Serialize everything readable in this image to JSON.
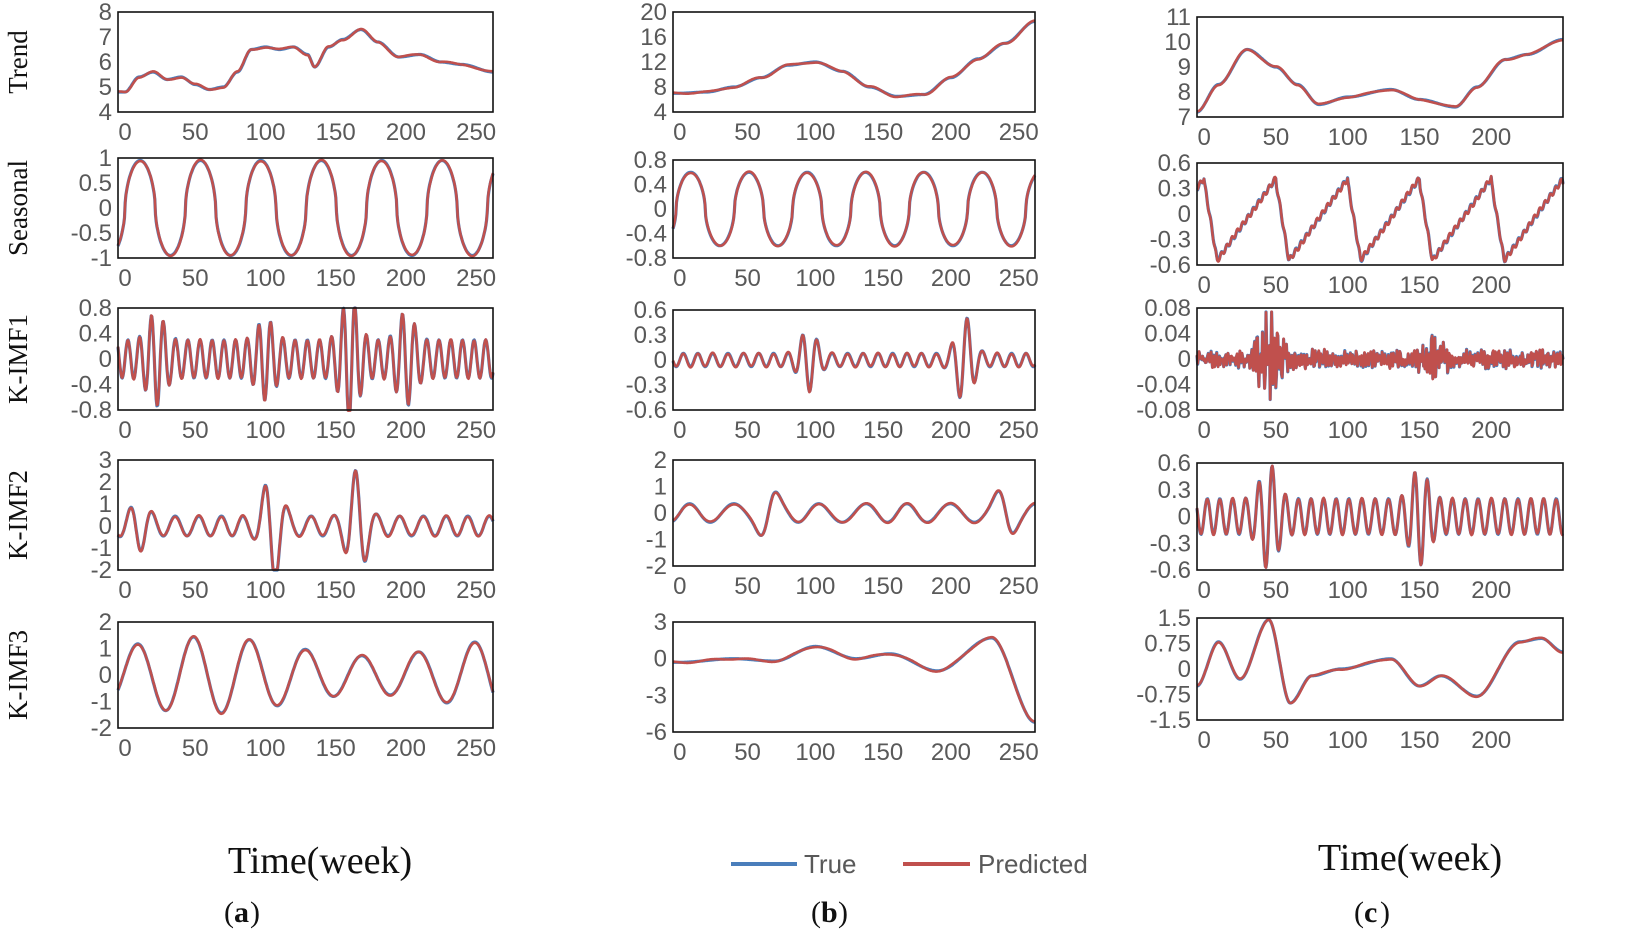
{
  "chart_data": {
    "type": "line",
    "series_names": [
      "True",
      "Predicted"
    ],
    "colors": {
      "true": "#4a7ebb",
      "predicted": "#c0504d"
    },
    "legend": {
      "position": "bottom-center",
      "items": [
        "True",
        "Predicted"
      ]
    },
    "x_titles": [
      "Time(week)",
      "Time(week)"
    ],
    "panels": [
      {
        "id": "a",
        "letter": "a",
        "rows": [
          {
            "ylabel": "Trend",
            "xmin": -5,
            "xmax": 262,
            "xticks": [
              0,
              50,
              100,
              150,
              200,
              250
            ],
            "ymin": 4,
            "ymax": 8,
            "yticks": [
              "4",
              "5",
              "6",
              "7",
              "8"
            ],
            "shape": "trend",
            "points": [
              [
                0,
                4.8
              ],
              [
                10,
                5.4
              ],
              [
                20,
                5.6
              ],
              [
                30,
                5.3
              ],
              [
                40,
                5.4
              ],
              [
                50,
                5.1
              ],
              [
                60,
                4.9
              ],
              [
                70,
                5.0
              ],
              [
                80,
                5.6
              ],
              [
                90,
                6.5
              ],
              [
                100,
                6.6
              ],
              [
                110,
                6.5
              ],
              [
                120,
                6.6
              ],
              [
                130,
                6.3
              ],
              [
                135,
                5.8
              ],
              [
                145,
                6.6
              ],
              [
                155,
                6.9
              ],
              [
                168,
                7.3
              ],
              [
                180,
                6.8
              ],
              [
                195,
                6.2
              ],
              [
                210,
                6.3
              ],
              [
                225,
                6.0
              ],
              [
                240,
                5.9
              ],
              [
                262,
                5.6
              ]
            ]
          },
          {
            "ylabel": "Seasonal",
            "xmin": -5,
            "xmax": 262,
            "xticks": [
              0,
              50,
              100,
              150,
              200,
              250
            ],
            "ymin": -1,
            "ymax": 1,
            "yticks": [
              "-1",
              "-0.5",
              "0",
              "0.5",
              "1"
            ],
            "shape": "seasonal",
            "amp": 0.95,
            "period": 43,
            "phase": 0
          },
          {
            "ylabel": "K-IMF1",
            "xmin": -5,
            "xmax": 262,
            "xticks": [
              0,
              50,
              100,
              150,
              200,
              250
            ],
            "ymin": -0.8,
            "ymax": 0.8,
            "yticks": [
              "-0.8",
              "-0.4",
              "0",
              "0.4",
              "0.8"
            ],
            "shape": "osc",
            "amp": 0.3,
            "period": 8.5,
            "bursts": [
              [
                22,
                0.45
              ],
              [
                100,
                0.35
              ],
              [
                160,
                0.7
              ],
              [
                200,
                0.45
              ]
            ]
          },
          {
            "ylabel": "K-IMF2",
            "xmin": -5,
            "xmax": 262,
            "xticks": [
              0,
              50,
              100,
              150,
              200,
              250
            ],
            "ymin": -2,
            "ymax": 3,
            "yticks": [
              "-2",
              "-1",
              "0",
              "1",
              "2",
              "3"
            ],
            "shape": "osc",
            "amp": 0.45,
            "period": 16,
            "bursts": [
              [
                105,
                2.2
              ],
              [
                165,
                2.1
              ],
              [
                10,
                0.7
              ]
            ]
          },
          {
            "ylabel": "K-IMF3",
            "xmin": -5,
            "xmax": 262,
            "xticks": [
              0,
              50,
              100,
              150,
              200,
              250
            ],
            "ymin": -2,
            "ymax": 2,
            "yticks": [
              "-2",
              "-1",
              "0",
              "1",
              "2"
            ],
            "shape": "wave",
            "amp": 1.45,
            "period": 40,
            "phase": 0.2
          }
        ]
      },
      {
        "id": "b",
        "letter": "b",
        "rows": [
          {
            "ylabel": "",
            "xmin": -5,
            "xmax": 262,
            "xticks": [
              0,
              50,
              100,
              150,
              200,
              250
            ],
            "ymin": 4,
            "ymax": 20,
            "yticks": [
              "4",
              "8",
              "12",
              "16",
              "20"
            ],
            "shape": "trend",
            "points": [
              [
                0,
                7.0
              ],
              [
                20,
                7.2
              ],
              [
                40,
                8.0
              ],
              [
                60,
                9.5
              ],
              [
                80,
                11.5
              ],
              [
                100,
                12.0
              ],
              [
                120,
                10.5
              ],
              [
                140,
                8.0
              ],
              [
                160,
                6.5
              ],
              [
                180,
                6.8
              ],
              [
                200,
                9.5
              ],
              [
                220,
                12.5
              ],
              [
                240,
                15.0
              ],
              [
                262,
                18.5
              ]
            ]
          },
          {
            "ylabel": "",
            "xmin": -5,
            "xmax": 262,
            "xticks": [
              0,
              50,
              100,
              150,
              200,
              250
            ],
            "ymin": -0.8,
            "ymax": 0.8,
            "yticks": [
              "-0.8",
              "-0.4",
              "0",
              "0.4",
              "0.8"
            ],
            "shape": "seasonal",
            "amp": 0.6,
            "period": 43,
            "phase": 0.4
          },
          {
            "ylabel": "",
            "xmin": -5,
            "xmax": 262,
            "xticks": [
              0,
              50,
              100,
              150,
              200,
              250
            ],
            "ymin": -0.6,
            "ymax": 0.6,
            "yticks": [
              "-0.6",
              "-0.3",
              "0",
              "0.3",
              "0.6"
            ],
            "shape": "osc",
            "amp": 0.08,
            "period": 11,
            "bursts": [
              [
                95,
                0.3
              ],
              [
                210,
                0.45
              ]
            ]
          },
          {
            "ylabel": "",
            "xmin": -5,
            "xmax": 262,
            "xticks": [
              0,
              50,
              100,
              150,
              200,
              250
            ],
            "ymin": -2,
            "ymax": 2,
            "yticks": [
              "-2",
              "-1",
              "0",
              "1",
              "2"
            ],
            "shape": "osc",
            "amp": 0.35,
            "period": 32,
            "bursts": [
              [
                65,
                0.9
              ],
              [
                240,
                0.8
              ]
            ]
          },
          {
            "ylabel": "",
            "xmin": -5,
            "xmax": 262,
            "xticks": [
              0,
              50,
              100,
              150,
              200,
              250
            ],
            "ymin": -6,
            "ymax": 3,
            "yticks": [
              "-6",
              "-3",
              "0",
              "3"
            ],
            "shape": "trend",
            "points": [
              [
                0,
                -0.3
              ],
              [
                40,
                0.0
              ],
              [
                70,
                -0.2
              ],
              [
                100,
                1.0
              ],
              [
                130,
                0.0
              ],
              [
                155,
                0.4
              ],
              [
                190,
                -1.0
              ],
              [
                230,
                1.7
              ],
              [
                262,
                -5.2
              ]
            ]
          }
        ]
      },
      {
        "id": "c",
        "letter": "c",
        "rows": [
          {
            "ylabel": "",
            "xmin": -5,
            "xmax": 250,
            "xticks": [
              0,
              50,
              100,
              150,
              200
            ],
            "ymin": 7,
            "ymax": 11,
            "yticks": [
              "7",
              "8",
              "9",
              "10",
              "11"
            ],
            "shape": "trend",
            "points": [
              [
                -5,
                7.2
              ],
              [
                10,
                8.3
              ],
              [
                30,
                9.7
              ],
              [
                50,
                9.0
              ],
              [
                65,
                8.3
              ],
              [
                80,
                7.5
              ],
              [
                100,
                7.8
              ],
              [
                130,
                8.1
              ],
              [
                150,
                7.7
              ],
              [
                175,
                7.4
              ],
              [
                190,
                8.2
              ],
              [
                210,
                9.3
              ],
              [
                225,
                9.5
              ],
              [
                250,
                10.1
              ]
            ]
          },
          {
            "ylabel": "",
            "xmin": -5,
            "xmax": 250,
            "xticks": [
              0,
              50,
              100,
              150,
              200
            ],
            "ymin": -0.6,
            "ymax": 0.6,
            "yticks": [
              "-0.6",
              "-0.3",
              "0",
              "0.3",
              "0.6"
            ],
            "shape": "sawtooth",
            "amp": 0.42,
            "period": 50,
            "phase": 0
          },
          {
            "ylabel": "",
            "xmin": -5,
            "xmax": 250,
            "xticks": [
              0,
              50,
              100,
              150,
              200
            ],
            "ymin": -0.08,
            "ymax": 0.08,
            "yticks": [
              "-0.08",
              "-0.04",
              "0",
              "0.04",
              "0.08"
            ],
            "shape": "noise",
            "amp": 0.012,
            "bursts": [
              [
                45,
                0.05
              ],
              [
                160,
                0.02
              ]
            ]
          },
          {
            "ylabel": "",
            "xmin": -5,
            "xmax": 250,
            "xticks": [
              0,
              50,
              100,
              150,
              200
            ],
            "ymin": -0.6,
            "ymax": 0.6,
            "yticks": [
              "-0.6",
              "-0.3",
              "0",
              "0.3",
              "0.6"
            ],
            "shape": "osc",
            "amp": 0.2,
            "period": 9,
            "bursts": [
              [
                45,
                0.4
              ],
              [
                150,
                0.35
              ]
            ]
          },
          {
            "ylabel": "",
            "xmin": -5,
            "xmax": 250,
            "xticks": [
              0,
              50,
              100,
              150,
              200
            ],
            "ymin": -1.5,
            "ymax": 1.5,
            "yticks": [
              "-1.5",
              "-0.75",
              "0",
              "0.75",
              "1.5"
            ],
            "shape": "trend",
            "points": [
              [
                -5,
                -0.5
              ],
              [
                10,
                0.8
              ],
              [
                25,
                -0.3
              ],
              [
                45,
                1.45
              ],
              [
                60,
                -1.0
              ],
              [
                75,
                -0.2
              ],
              [
                95,
                0.0
              ],
              [
                130,
                0.3
              ],
              [
                150,
                -0.5
              ],
              [
                165,
                -0.2
              ],
              [
                190,
                -0.8
              ],
              [
                220,
                0.8
              ],
              [
                235,
                0.9
              ],
              [
                250,
                0.5
              ]
            ]
          }
        ]
      }
    ]
  }
}
